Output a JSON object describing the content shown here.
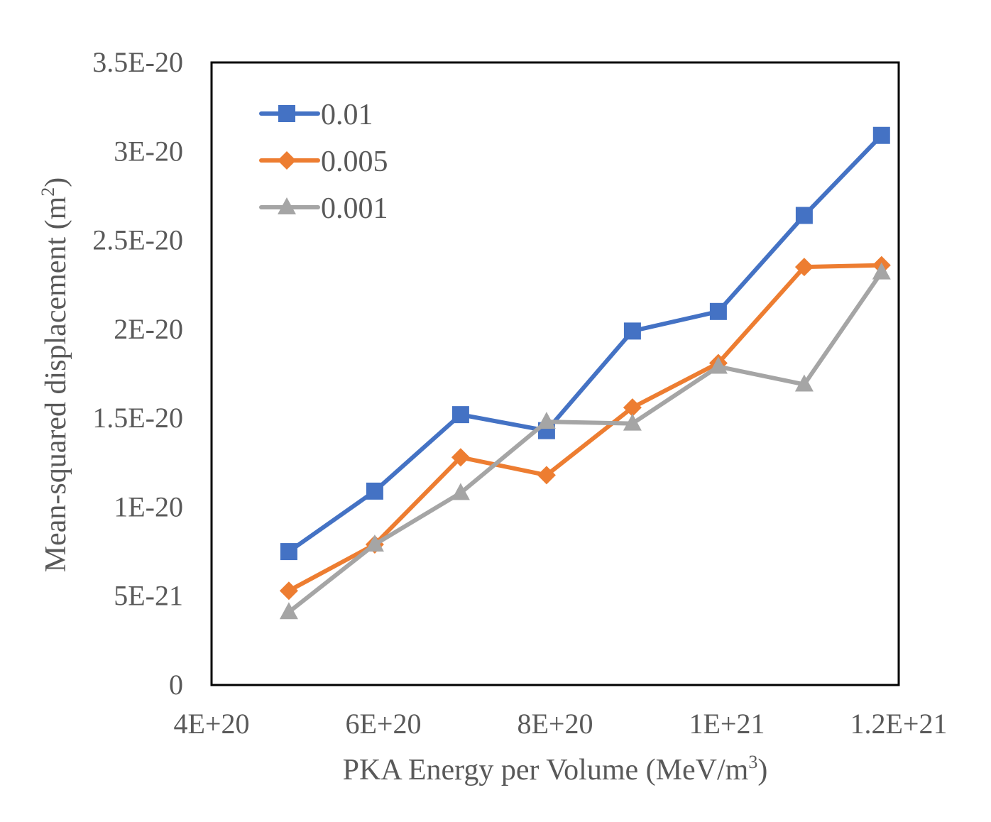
{
  "chart_data": {
    "type": "line",
    "title": "",
    "xlabel": {
      "text": "PKA Energy per Volume (MeV/m",
      "superscript": "3",
      "suffix": ")"
    },
    "ylabel": {
      "text": "Mean-squared displacement (m",
      "superscript": "2",
      "suffix": ")"
    },
    "xlim": [
      4e+20,
      1.2e+21
    ],
    "ylim": [
      0,
      3.5e-20
    ],
    "xticks": [
      4e+20,
      6e+20,
      8e+20,
      1e+21,
      1.2e+21
    ],
    "xtick_labels": [
      "4E+20",
      "6E+20",
      "8E+20",
      "1E+21",
      "1.2E+21"
    ],
    "yticks": [
      0,
      5e-21,
      1e-20,
      1.5e-20,
      2e-20,
      2.5e-20,
      3e-20,
      3.5e-20
    ],
    "ytick_labels": [
      "0",
      "5E-21",
      "1E-20",
      "1.5E-20",
      "2E-20",
      "2.5E-20",
      "3E-20",
      "3.5E-20"
    ],
    "grid": false,
    "legend_position": "top-left",
    "x": [
      4.9e+20,
      5.9e+20,
      6.9e+20,
      7.9e+20,
      8.9e+20,
      9.9e+20,
      1.09e+21,
      1.18e+21
    ],
    "series": [
      {
        "name": "0.01",
        "color": "#4472C4",
        "marker": "square",
        "values": [
          7.5e-21,
          1.09e-20,
          1.52e-20,
          1.43e-20,
          1.99e-20,
          2.1e-20,
          2.64e-20,
          3.09e-20
        ]
      },
      {
        "name": "0.005",
        "color": "#ED7D31",
        "marker": "diamond",
        "values": [
          5.3e-21,
          7.9e-21,
          1.28e-20,
          1.18e-20,
          1.56e-20,
          1.81e-20,
          2.35e-20,
          2.36e-20
        ]
      },
      {
        "name": "0.001",
        "color": "#A5A5A5",
        "marker": "triangle",
        "values": [
          4.1e-21,
          7.9e-21,
          1.08e-20,
          1.48e-20,
          1.47e-20,
          1.79e-20,
          1.69e-20,
          2.32e-20
        ]
      }
    ]
  }
}
